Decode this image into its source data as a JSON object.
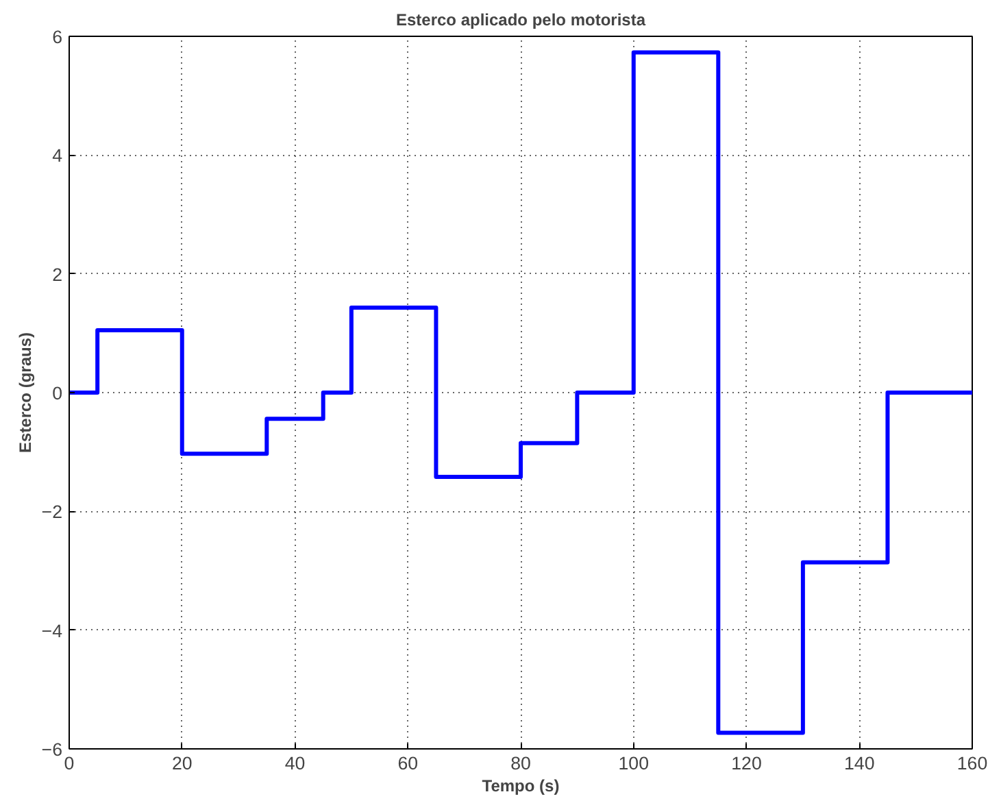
{
  "chart_data": {
    "type": "step",
    "title": "Esterco aplicado pelo motorista",
    "xlabel": "Tempo (s)",
    "ylabel": "Esterco (graus)",
    "x": [
      0,
      5,
      20,
      35,
      45,
      50,
      65,
      80,
      90,
      100,
      115,
      130,
      145,
      160
    ],
    "series": [
      {
        "color": "#0000ff",
        "values": [
          0,
          1.05,
          -1.03,
          -0.44,
          0,
          1.43,
          -1.42,
          -0.85,
          0,
          5.73,
          -5.73,
          -2.86,
          0,
          0
        ]
      }
    ],
    "xlim": [
      0,
      160
    ],
    "ylim": [
      -6,
      6
    ],
    "xticks": [
      0,
      20,
      40,
      60,
      80,
      100,
      120,
      140,
      160
    ],
    "yticks": [
      -6,
      -4,
      -2,
      0,
      2,
      4,
      6
    ],
    "grid": true,
    "line_style": "solid"
  }
}
